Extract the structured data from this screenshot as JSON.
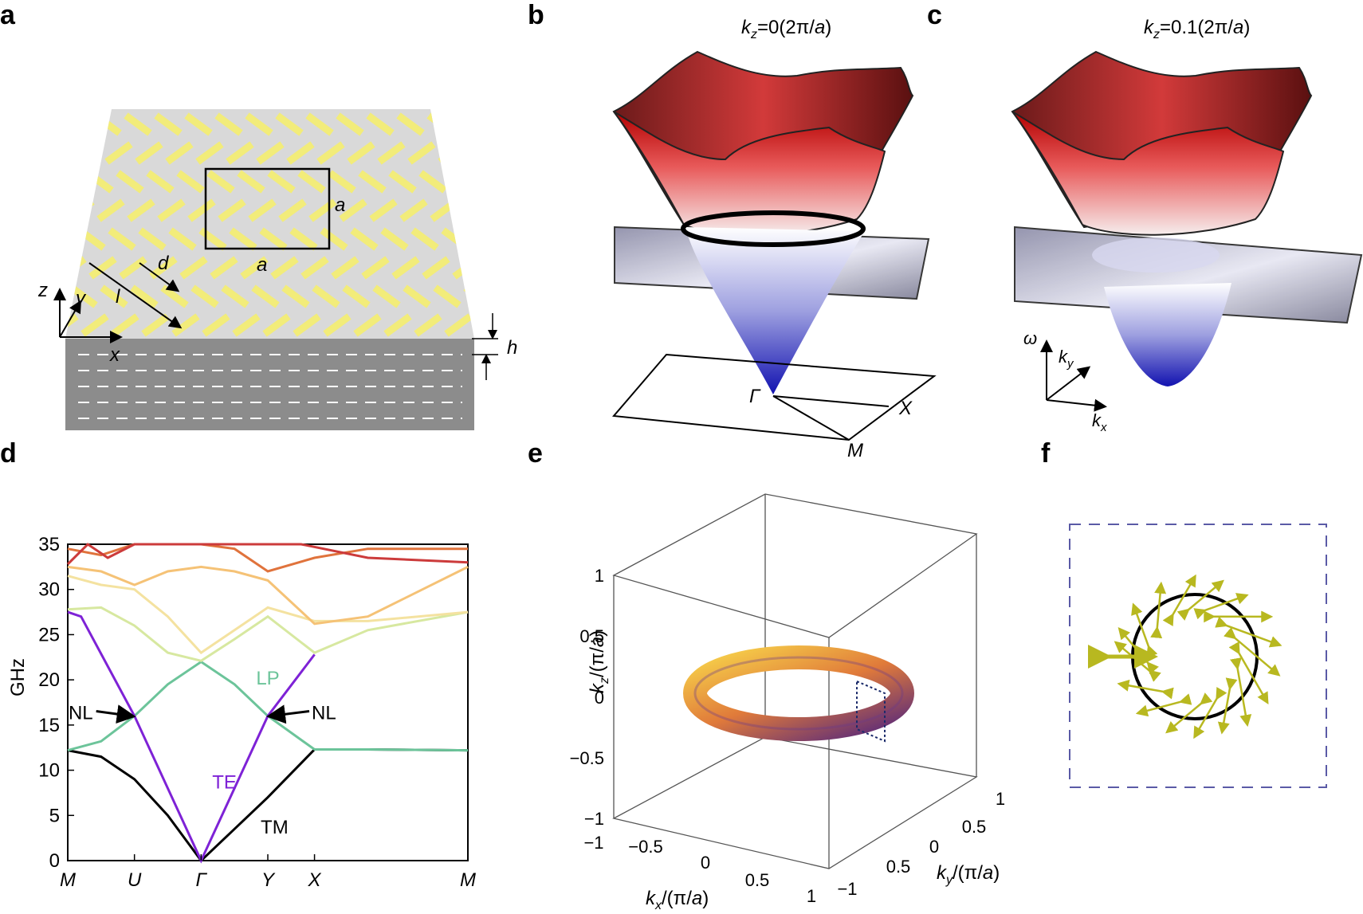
{
  "panels": {
    "a": "a",
    "b": "b",
    "c": "c",
    "d": "d",
    "e": "e",
    "f": "f"
  },
  "panel_a": {
    "a": "a",
    "d": "d",
    "l": "l",
    "h": "h",
    "x": "x",
    "y": "y",
    "z": "z"
  },
  "panel_b": {
    "k": "k",
    "sub": "z",
    "eq": "=0(2π/",
    "a": "a",
    "close": ")",
    "gamma": "Γ",
    "xpt": "X",
    "mpt": "M"
  },
  "panel_c": {
    "k": "k",
    "sub": "z",
    "eq": "=0.1(2π/",
    "a": "a",
    "close": ")",
    "omega": "ω",
    "x": "x",
    "y": "y"
  },
  "panel_e": {
    "k": "k",
    "x": "x",
    "y": "y",
    "z": "z",
    "unit_pre": "/(π/",
    "a": "a",
    "unit_post": ")",
    "kz_ticks": [
      "1",
      "0.5",
      "0",
      "−0.5",
      "−1"
    ],
    "kx_ticks": [
      "−1",
      "−0.5",
      "0",
      "0.5",
      "1"
    ],
    "ky_ticks": [
      "1",
      "0.5",
      "0",
      "0.5",
      "−1"
    ]
  },
  "colors": {
    "black_band": "#000000",
    "green_band": "#6cc49a",
    "purple_band": "#7e22d6",
    "lightgreen_band": "#d7e8a0",
    "yellow_band": "#f4e2a0",
    "orange_band": "#f5c276",
    "darkorange_band": "#e0733c",
    "red_band": "#cc3b3b",
    "field_arrow": "#b8b820"
  },
  "chart_data": {
    "type": "line",
    "ylabel": "GHz",
    "ylim": [
      0,
      35
    ],
    "yticks": [
      0,
      5,
      10,
      15,
      20,
      25,
      30,
      35
    ],
    "xticks": [
      {
        "label": "M",
        "x": 0
      },
      {
        "label": "U",
        "x": 1
      },
      {
        "label": "Γ",
        "x": 2
      },
      {
        "label": "Y",
        "x": 3
      },
      {
        "label": "X",
        "x": 3.7
      },
      {
        "label": "M",
        "x": 6
      }
    ],
    "series": [
      {
        "name": "TM",
        "color": "#000000",
        "x": [
          0,
          0.5,
          1,
          1.5,
          2,
          2.5,
          3,
          3.7,
          4.5,
          6
        ],
        "y": [
          12.2,
          11.5,
          9.0,
          5.0,
          0,
          3.5,
          7.0,
          12.3,
          12.3,
          12.2
        ]
      },
      {
        "name": "LP",
        "color": "#6cc49a",
        "x": [
          0,
          0.5,
          1,
          1.5,
          2,
          2.5,
          3,
          3.7,
          4.5,
          6
        ],
        "y": [
          12.2,
          13.2,
          16.0,
          19.5,
          22.0,
          19.5,
          16.0,
          12.3,
          12.3,
          12.2
        ]
      },
      {
        "name": "TE",
        "color": "#7e22d6",
        "x": [
          0,
          0.2,
          1,
          2,
          3,
          3.7
        ],
        "y": [
          27.5,
          27.0,
          16.0,
          0,
          16.0,
          22.8
        ]
      },
      {
        "color": "#d7e8a0",
        "x": [
          0,
          0.5,
          1,
          1.5,
          2,
          2.5,
          3,
          3.7,
          4.5,
          6
        ],
        "y": [
          27.8,
          28.0,
          26.0,
          23.0,
          22.1,
          24.5,
          27.0,
          23.0,
          25.5,
          27.5
        ]
      },
      {
        "color": "#f4e2a0",
        "x": [
          0,
          0.5,
          1,
          1.5,
          2,
          2.5,
          3,
          3.7,
          4.5,
          6
        ],
        "y": [
          31.5,
          30.5,
          30.0,
          27.0,
          23.0,
          25.5,
          28.0,
          26.5,
          26.5,
          27.5
        ]
      },
      {
        "color": "#f5c276",
        "x": [
          0,
          0.5,
          1,
          1.5,
          2,
          2.5,
          3,
          3.7,
          4.5,
          6
        ],
        "y": [
          32.5,
          32.0,
          30.5,
          32.0,
          32.5,
          32.0,
          31.0,
          26.2,
          27.0,
          32.5
        ]
      },
      {
        "color": "#e0733c",
        "x": [
          0,
          0.5,
          1,
          1.5,
          2,
          2.5,
          3,
          3.7,
          4.5,
          6
        ],
        "y": [
          34.5,
          33.8,
          35.0,
          35.0,
          35.0,
          34.5,
          32.0,
          33.5,
          34.5,
          34.5
        ]
      },
      {
        "color": "#cc3b3b",
        "x": [
          0,
          0.3,
          0.6,
          1,
          3.5,
          4.5,
          6
        ],
        "y": [
          32.8,
          35.0,
          33.5,
          35.0,
          35.0,
          33.5,
          33.0
        ]
      }
    ],
    "annotations": [
      {
        "text": "NL",
        "x": 1,
        "y": 16
      },
      {
        "text": "NL",
        "x": 3,
        "y": 16
      },
      {
        "text": "LP",
        "x": 3.0,
        "y": 19.5
      },
      {
        "text": "TE",
        "x": 2.35,
        "y": 8
      },
      {
        "text": "TM",
        "x": 3.1,
        "y": 3
      }
    ]
  }
}
